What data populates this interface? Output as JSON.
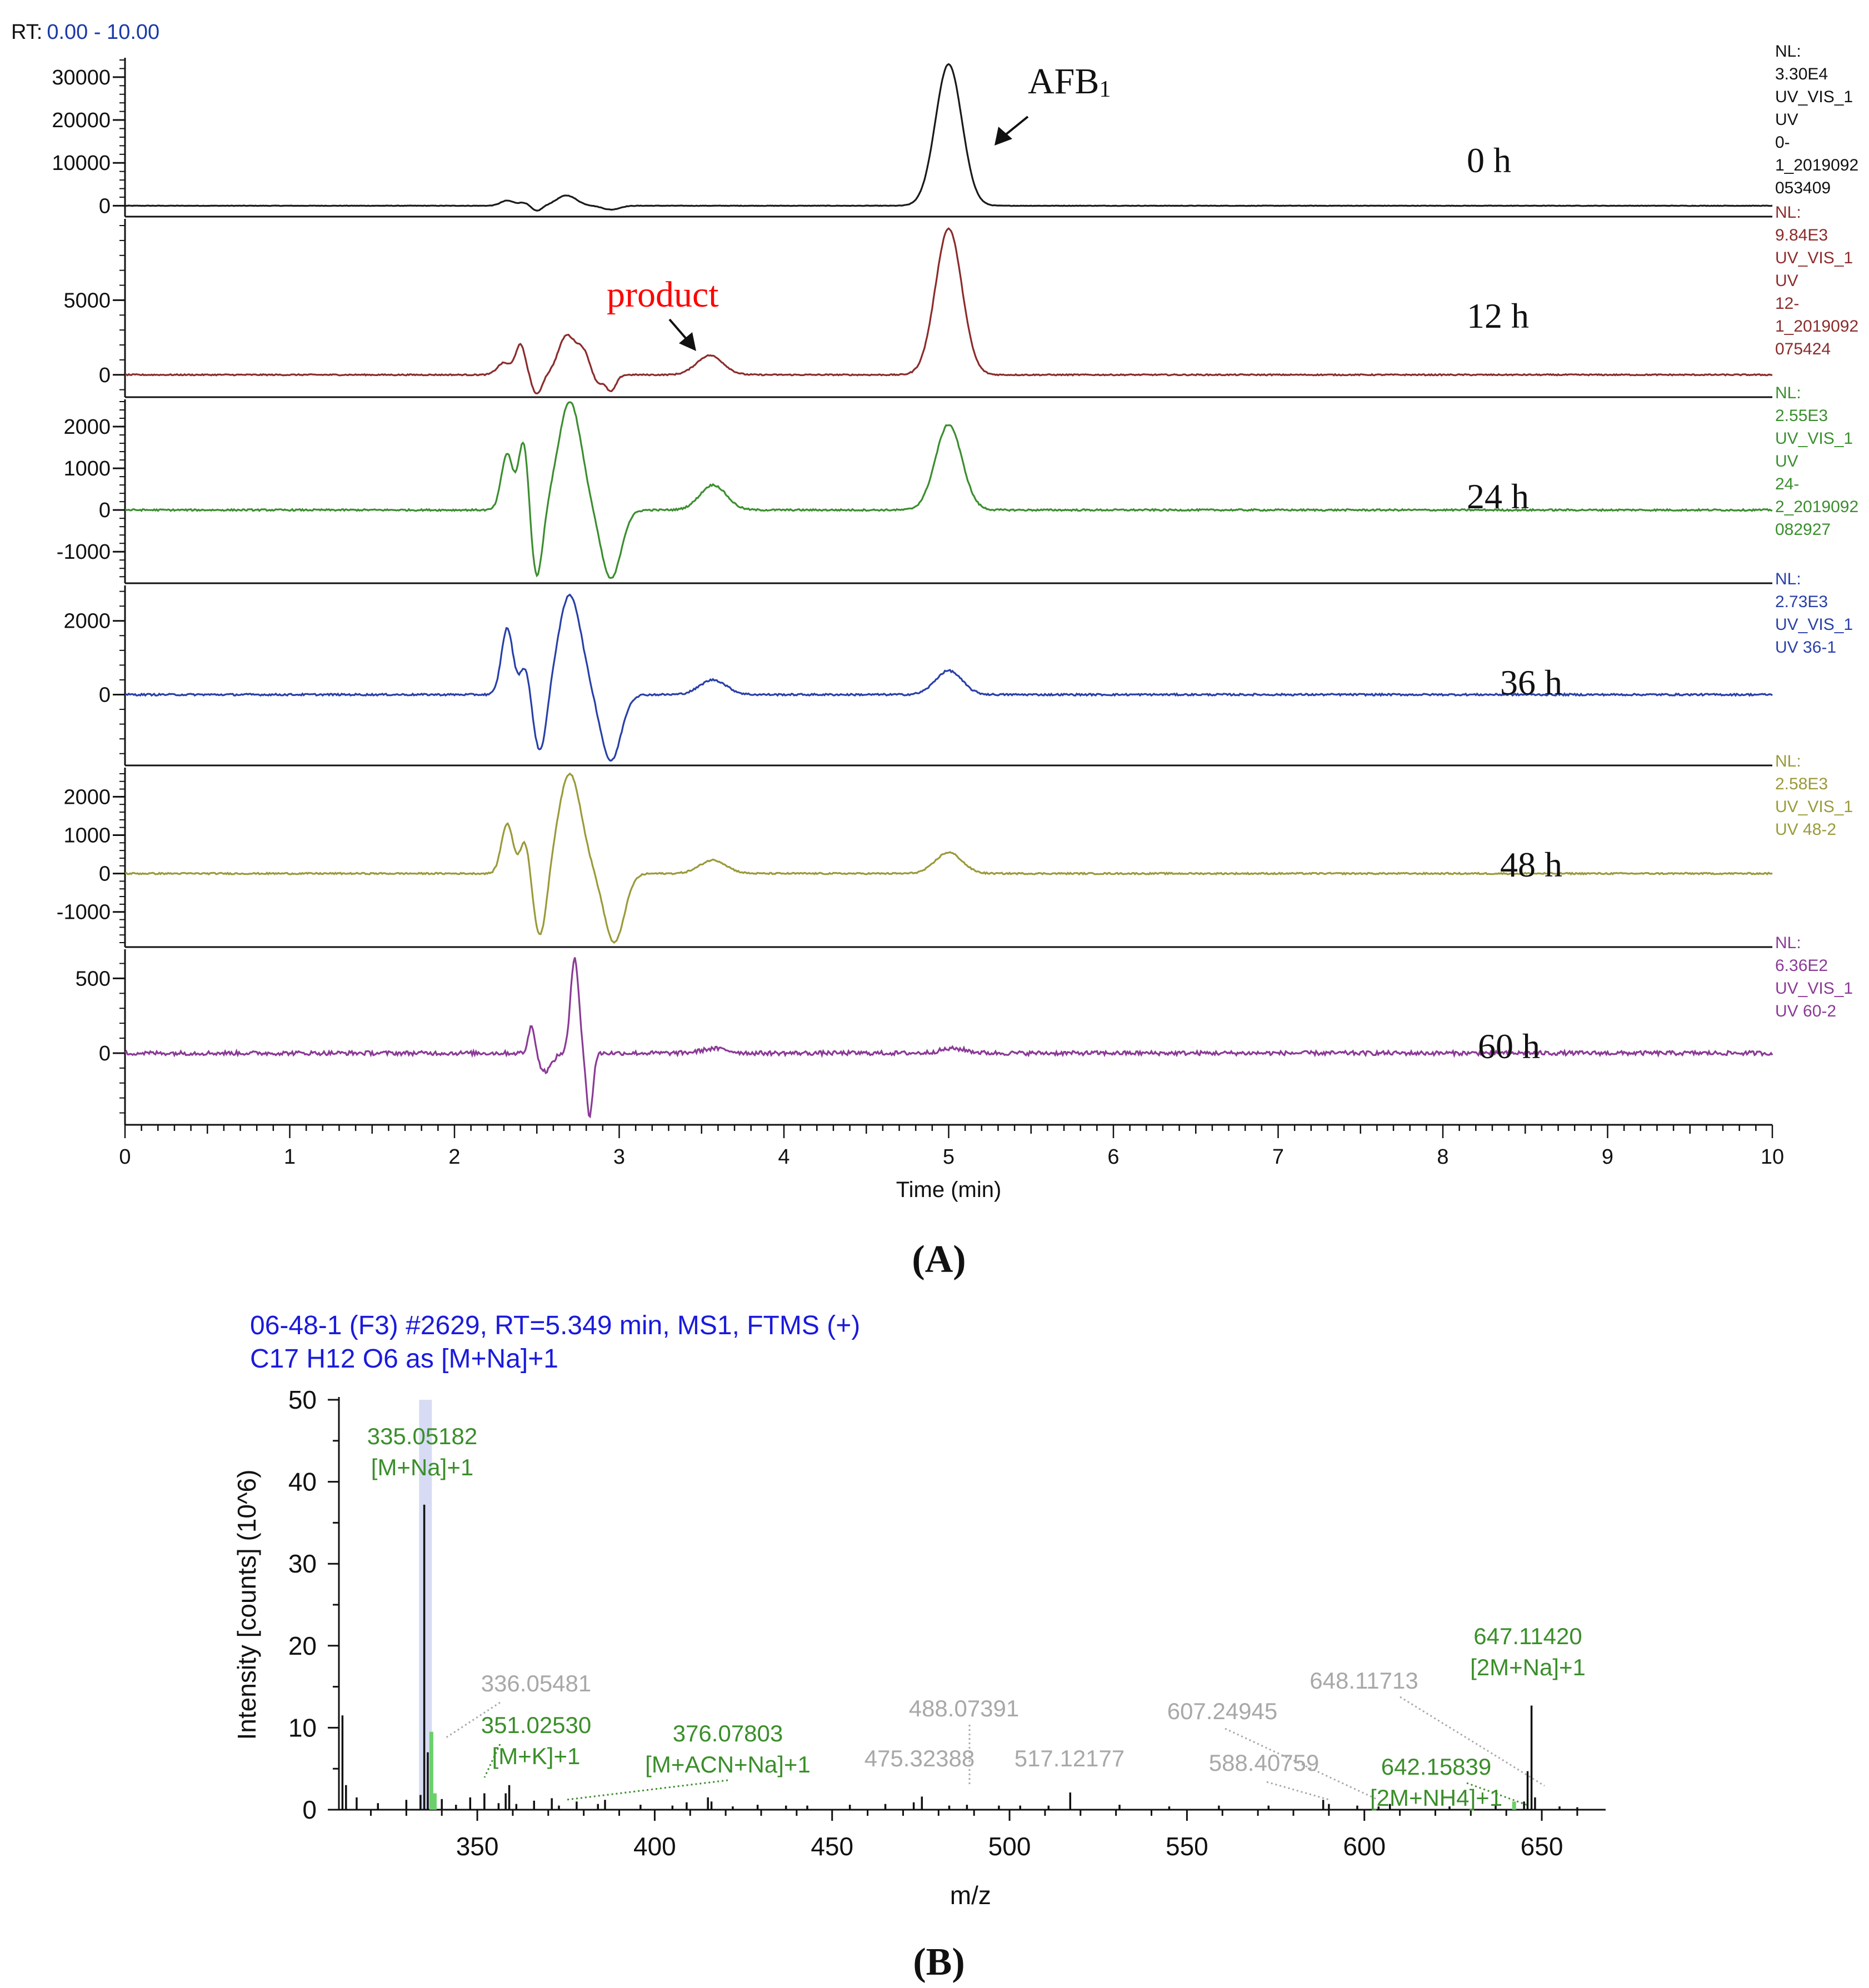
{
  "figure": {
    "panel_a_label": "(A)",
    "panel_b_label": "(B)"
  },
  "chart_data": [
    {
      "type": "line",
      "panel": "A",
      "rt_label": "RT:",
      "rt_range": "0.00 - 10.00",
      "xlabel": "Time (min)",
      "xlim": [
        0,
        10
      ],
      "x_ticks": [
        0,
        1,
        2,
        3,
        4,
        5,
        6,
        7,
        8,
        9,
        10
      ],
      "annotations": {
        "afb1": {
          "text": "AFB",
          "subscript": "1",
          "x": 5.0
        },
        "product": {
          "text": "product",
          "x": 3.55,
          "color": "#ff0000"
        }
      },
      "series": [
        {
          "name": "0 h",
          "color": "#1a1a1a",
          "ylim": [
            -1500,
            34000
          ],
          "y_ticks": [
            0,
            10000,
            20000,
            30000
          ],
          "nl": [
            "NL:",
            "3.30E4",
            "UV_VIS_1",
            "UV",
            "0-",
            "1_2019092",
            "053409"
          ],
          "peaks": [
            [
              2.32,
              1200,
              0.04
            ],
            [
              2.42,
              700,
              0.03
            ],
            [
              2.5,
              -1200,
              0.03
            ],
            [
              2.68,
              2400,
              0.06
            ],
            [
              2.95,
              -900,
              0.05
            ],
            [
              5.0,
              33000,
              0.08
            ]
          ],
          "noise": 50
        },
        {
          "name": "12 h",
          "color": "#8b2c2c",
          "ylim": [
            -1200,
            10300
          ],
          "y_ticks": [
            0,
            5000
          ],
          "nl": [
            "NL:",
            "9.84E3",
            "UV_VIS_1",
            "UV",
            "12-",
            "1_2019092",
            "075424"
          ],
          "peaks": [
            [
              2.3,
              800,
              0.04
            ],
            [
              2.4,
              2000,
              0.03
            ],
            [
              2.5,
              -1300,
              0.03
            ],
            [
              2.68,
              2600,
              0.05
            ],
            [
              2.78,
              1500,
              0.04
            ],
            [
              2.87,
              -600,
              0.03
            ],
            [
              2.95,
              -1100,
              0.03
            ],
            [
              3.55,
              1300,
              0.08
            ],
            [
              5.0,
              9800,
              0.08
            ]
          ],
          "noise": 40
        },
        {
          "name": "24 h",
          "color": "#3b8e2f",
          "ylim": [
            -1650,
            2600
          ],
          "y_ticks": [
            -1000,
            0,
            1000,
            2000
          ],
          "nl": [
            "NL:",
            "2.55E3",
            "UV_VIS_1",
            "UV",
            "24-",
            "2_2019092",
            "082927"
          ],
          "peaks": [
            [
              2.32,
              1350,
              0.035
            ],
            [
              2.42,
              1700,
              0.03
            ],
            [
              2.5,
              -1650,
              0.035
            ],
            [
              2.7,
              2600,
              0.07
            ],
            [
              2.95,
              -1650,
              0.06
            ],
            [
              3.57,
              600,
              0.08
            ],
            [
              5.0,
              2050,
              0.08
            ]
          ],
          "noise": 20
        },
        {
          "name": "36 h",
          "color": "#2940a8",
          "ylim": [
            -1800,
            2900
          ],
          "y_ticks": [
            0,
            2000
          ],
          "nl": [
            "NL:",
            "2.73E3",
            "UV_VIS_1",
            "UV 36-1"
          ],
          "peaks": [
            [
              2.32,
              1800,
              0.035
            ],
            [
              2.43,
              800,
              0.03
            ],
            [
              2.52,
              -1600,
              0.04
            ],
            [
              2.7,
              2700,
              0.07
            ],
            [
              2.95,
              -1800,
              0.06
            ],
            [
              3.57,
              400,
              0.08
            ],
            [
              5.0,
              650,
              0.08
            ]
          ],
          "noise": 25
        },
        {
          "name": "48 h",
          "color": "#9a9a3a",
          "ylim": [
            -1800,
            2700
          ],
          "y_ticks": [
            -1000,
            0,
            1000,
            2000
          ],
          "nl": [
            "NL:",
            "2.58E3",
            "UV_VIS_1",
            "UV 48-2"
          ],
          "peaks": [
            [
              2.32,
              1300,
              0.035
            ],
            [
              2.43,
              900,
              0.03
            ],
            [
              2.52,
              -1700,
              0.04
            ],
            [
              2.7,
              2600,
              0.07
            ],
            [
              2.97,
              -1800,
              0.06
            ],
            [
              3.57,
              350,
              0.08
            ],
            [
              5.0,
              550,
              0.08
            ]
          ],
          "noise": 20
        },
        {
          "name": "60 h",
          "color": "#8b3a96",
          "ylim": [
            -450,
            680
          ],
          "y_ticks": [
            0,
            500
          ],
          "nl": [
            "NL:",
            "6.36E2",
            "UV_VIS_1",
            "UV 60-2"
          ],
          "peaks": [
            [
              2.47,
              200,
              0.02
            ],
            [
              2.55,
              -120,
              0.04
            ],
            [
              2.73,
              640,
              0.025
            ],
            [
              2.82,
              -420,
              0.02
            ],
            [
              3.58,
              30,
              0.08
            ],
            [
              5.03,
              30,
              0.08
            ]
          ],
          "noise": 14
        }
      ]
    },
    {
      "type": "bar",
      "panel": "B",
      "title_lines": [
        "06-48-1 (F3) #2629, RT=5.349 min, MS1, FTMS (+)",
        "C17 H12 O6 as [M+Na]+1"
      ],
      "title_color": "#1a1adc",
      "xlabel": "m/z",
      "ylabel": "Intensity [counts] (10^6)",
      "xlim": [
        311,
        668
      ],
      "ylim": [
        0,
        50
      ],
      "x_ticks": [
        350,
        400,
        450,
        500,
        550,
        600,
        650
      ],
      "y_ticks": [
        0,
        10,
        20,
        30,
        40,
        50
      ],
      "highlight_band": [
        333.6,
        337.2
      ],
      "peaks": [
        [
          312,
          11.5,
          "k"
        ],
        [
          313,
          3.0,
          "k"
        ],
        [
          316,
          1.5,
          "k"
        ],
        [
          322,
          0.8,
          "k"
        ],
        [
          330,
          1.2,
          "k"
        ],
        [
          334,
          1.8,
          "k"
        ],
        [
          335.05,
          37.2,
          "k"
        ],
        [
          336.05,
          7.0,
          "k"
        ],
        [
          337.05,
          9.5,
          "g"
        ],
        [
          338.0,
          2.0,
          "g"
        ],
        [
          340,
          1.3,
          "k"
        ],
        [
          344,
          0.6,
          "k"
        ],
        [
          348,
          1.5,
          "k"
        ],
        [
          352,
          2.0,
          "k"
        ],
        [
          356,
          0.8,
          "k"
        ],
        [
          358,
          2.0,
          "k"
        ],
        [
          359,
          3.0,
          "k"
        ],
        [
          361,
          0.7,
          "k"
        ],
        [
          366,
          1.1,
          "k"
        ],
        [
          371,
          1.4,
          "k"
        ],
        [
          373,
          0.5,
          "k"
        ],
        [
          378,
          1.0,
          "k"
        ],
        [
          384,
          0.7,
          "k"
        ],
        [
          386,
          1.2,
          "k"
        ],
        [
          396,
          0.6,
          "k"
        ],
        [
          405,
          0.5,
          "k"
        ],
        [
          409,
          0.9,
          "k"
        ],
        [
          415,
          1.5,
          "k"
        ],
        [
          416,
          1.0,
          "k"
        ],
        [
          422,
          0.4,
          "k"
        ],
        [
          429,
          0.6,
          "k"
        ],
        [
          437,
          0.5,
          "k"
        ],
        [
          443,
          0.5,
          "k"
        ],
        [
          455,
          0.6,
          "k"
        ],
        [
          465,
          0.7,
          "k"
        ],
        [
          473,
          0.9,
          "k"
        ],
        [
          475.3,
          1.6,
          "k"
        ],
        [
          483,
          0.5,
          "k"
        ],
        [
          488,
          0.6,
          "k"
        ],
        [
          497,
          0.5,
          "k"
        ],
        [
          503,
          0.5,
          "k"
        ],
        [
          511,
          0.5,
          "k"
        ],
        [
          517.1,
          2.1,
          "k"
        ],
        [
          531,
          0.6,
          "k"
        ],
        [
          545,
          0.4,
          "k"
        ],
        [
          559,
          0.5,
          "k"
        ],
        [
          573,
          0.5,
          "k"
        ],
        [
          588.4,
          1.2,
          "k"
        ],
        [
          590,
          0.7,
          "k"
        ],
        [
          598,
          0.5,
          "k"
        ],
        [
          604,
          0.4,
          "k"
        ],
        [
          607.2,
          0.7,
          "k"
        ],
        [
          624,
          0.4,
          "k"
        ],
        [
          637,
          0.5,
          "k"
        ],
        [
          642.2,
          1.0,
          "g"
        ],
        [
          645,
          1.0,
          "k"
        ],
        [
          646.0,
          4.7,
          "k"
        ],
        [
          647.11,
          12.7,
          "k"
        ],
        [
          648.1,
          1.5,
          "k"
        ],
        [
          655,
          0.4,
          "k"
        ],
        [
          660,
          0.3,
          "k"
        ]
      ],
      "labels": [
        {
          "mz": 335.05182,
          "lines": [
            "335.05182",
            "[M+Na]+1"
          ],
          "color": "#3a8e2a"
        },
        {
          "mz": 336.05481,
          "lines": [
            "336.05481"
          ],
          "color": "#a8a8a8"
        },
        {
          "mz": 351.0253,
          "lines": [
            "351.02530",
            "[M+K]+1"
          ],
          "color": "#3a8e2a"
        },
        {
          "mz": 376.07803,
          "lines": [
            "376.07803",
            "[M+ACN+Na]+1"
          ],
          "color": "#3a8e2a"
        },
        {
          "mz": 475.32388,
          "lines": [
            "475.32388"
          ],
          "color": "#a8a8a8"
        },
        {
          "mz": 488.07391,
          "lines": [
            "488.07391"
          ],
          "color": "#a8a8a8"
        },
        {
          "mz": 517.12177,
          "lines": [
            "517.12177"
          ],
          "color": "#a8a8a8"
        },
        {
          "mz": 588.40759,
          "lines": [
            "588.40759"
          ],
          "color": "#a8a8a8"
        },
        {
          "mz": 607.24945,
          "lines": [
            "607.24945"
          ],
          "color": "#a8a8a8"
        },
        {
          "mz": 642.15839,
          "lines": [
            "642.15839",
            "[2M+NH4]+1"
          ],
          "color": "#3a8e2a"
        },
        {
          "mz": 647.1142,
          "lines": [
            "647.11420",
            "[2M+Na]+1"
          ],
          "color": "#3a8e2a"
        },
        {
          "mz": 648.11713,
          "lines": [
            "648.11713"
          ],
          "color": "#a8a8a8"
        }
      ]
    }
  ]
}
